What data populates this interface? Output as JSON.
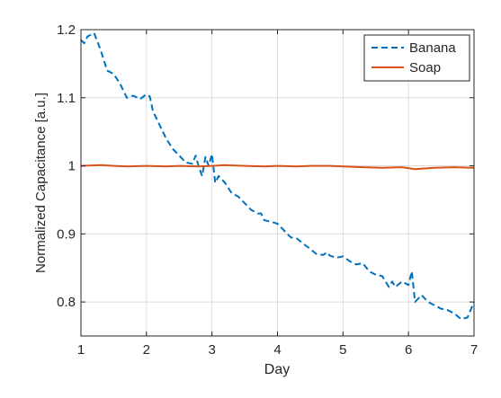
{
  "chart_data": {
    "type": "line",
    "xlabel": "Day",
    "ylabel": "Normalized Capacitance [a.u.]",
    "xlim": [
      1,
      7
    ],
    "ylim": [
      0.75,
      1.2
    ],
    "xticks": [
      1,
      2,
      3,
      4,
      5,
      6,
      7
    ],
    "yticks": [
      0.8,
      0.9,
      1.0,
      1.1,
      1.2
    ],
    "xtick_labels": [
      "1",
      "2",
      "3",
      "4",
      "5",
      "6",
      "7"
    ],
    "ytick_labels": [
      "0.8",
      "0.9",
      "1",
      "1.1",
      "1.2"
    ],
    "grid": true,
    "legend_position": "top-right",
    "series": [
      {
        "name": "Banana",
        "color": "#0072BD",
        "line_style": "dashed",
        "x": [
          1.0,
          1.05,
          1.1,
          1.2,
          1.3,
          1.4,
          1.5,
          1.6,
          1.7,
          1.8,
          1.9,
          2.0,
          2.05,
          2.1,
          2.2,
          2.3,
          2.4,
          2.5,
          2.6,
          2.7,
          2.75,
          2.8,
          2.85,
          2.9,
          2.95,
          3.0,
          3.05,
          3.1,
          3.2,
          3.3,
          3.4,
          3.5,
          3.6,
          3.7,
          3.75,
          3.8,
          3.9,
          4.0,
          4.1,
          4.2,
          4.3,
          4.4,
          4.5,
          4.6,
          4.7,
          4.75,
          4.8,
          4.9,
          5.0,
          5.1,
          5.2,
          5.3,
          5.4,
          5.5,
          5.6,
          5.7,
          5.75,
          5.8,
          5.9,
          6.0,
          6.05,
          6.1,
          6.2,
          6.3,
          6.4,
          6.5,
          6.6,
          6.7,
          6.8,
          6.9,
          7.0
        ],
        "y": [
          1.185,
          1.18,
          1.19,
          1.195,
          1.17,
          1.14,
          1.135,
          1.12,
          1.1,
          1.103,
          1.098,
          1.105,
          1.102,
          1.08,
          1.06,
          1.04,
          1.025,
          1.015,
          1.005,
          1.003,
          1.015,
          0.998,
          0.985,
          1.013,
          1.0,
          1.017,
          0.975,
          0.985,
          0.975,
          0.96,
          0.955,
          0.945,
          0.935,
          0.93,
          0.93,
          0.92,
          0.918,
          0.915,
          0.905,
          0.895,
          0.893,
          0.885,
          0.878,
          0.87,
          0.869,
          0.873,
          0.868,
          0.865,
          0.867,
          0.86,
          0.855,
          0.857,
          0.845,
          0.84,
          0.838,
          0.822,
          0.83,
          0.822,
          0.83,
          0.825,
          0.845,
          0.8,
          0.81,
          0.8,
          0.795,
          0.79,
          0.788,
          0.783,
          0.775,
          0.777,
          0.8
        ]
      },
      {
        "name": "Soap",
        "color": "#D95319",
        "line_style": "solid",
        "x": [
          1.0,
          1.3,
          1.5,
          1.7,
          2.0,
          2.3,
          2.5,
          2.8,
          3.0,
          3.2,
          3.5,
          3.8,
          4.0,
          4.3,
          4.5,
          4.8,
          5.0,
          5.3,
          5.6,
          5.9,
          6.1,
          6.4,
          6.7,
          7.0
        ],
        "y": [
          1.0,
          1.001,
          1.0,
          0.999,
          1.0,
          0.999,
          1.0,
          0.999,
          1.0,
          1.001,
          1.0,
          0.999,
          1.0,
          0.999,
          1.0,
          1.0,
          0.999,
          0.998,
          0.997,
          0.998,
          0.995,
          0.997,
          0.998,
          0.997
        ]
      }
    ]
  }
}
